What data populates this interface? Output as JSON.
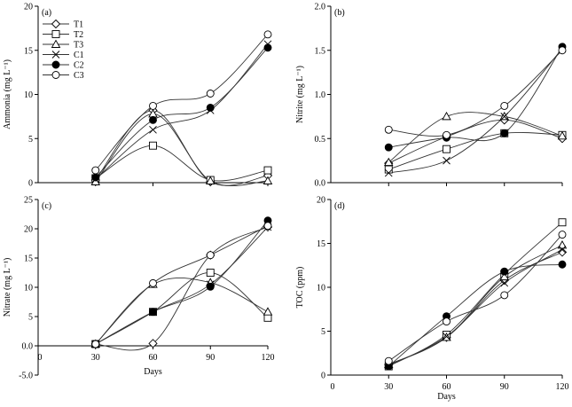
{
  "chart_data": [
    {
      "type": "line",
      "panel": "(a)",
      "ylabel": "Ammonia (mg L⁻¹)",
      "xlabel": "",
      "ylim": [
        0,
        20
      ],
      "yticks": [
        "0",
        "5",
        "10",
        "15",
        "20"
      ],
      "xlim": [
        0,
        120
      ],
      "xticks": [],
      "x": [
        30,
        60,
        90,
        120
      ],
      "legend": {
        "placement": "top-left",
        "entries": [
          "T1",
          "T2",
          "T3",
          "C1",
          "C2",
          "C3"
        ]
      },
      "series": [
        {
          "name": "T1",
          "marker": "diamond-open",
          "values": [
            0.3,
            8.2,
            0.1,
            0.8
          ]
        },
        {
          "name": "T2",
          "marker": "square-open",
          "values": [
            0.5,
            4.2,
            0.3,
            1.4
          ]
        },
        {
          "name": "T3",
          "marker": "triangle-open",
          "values": [
            0.1,
            7.8,
            0.2,
            0.2
          ]
        },
        {
          "name": "C1",
          "marker": "cross",
          "values": [
            0.4,
            6.0,
            8.2,
            15.7
          ]
        },
        {
          "name": "C2",
          "marker": "circle-filled",
          "values": [
            0.6,
            7.1,
            8.5,
            15.3
          ]
        },
        {
          "name": "C3",
          "marker": "circle-open",
          "values": [
            1.4,
            8.7,
            10.1,
            16.8
          ]
        }
      ]
    },
    {
      "type": "line",
      "panel": "(b)",
      "ylabel": "Nitrite (mg L⁻¹)",
      "xlabel": "",
      "ylim": [
        0,
        2
      ],
      "yticks": [
        "0.0",
        "0.5",
        "1.0",
        "1.5",
        "2.0"
      ],
      "xlim": [
        0,
        120
      ],
      "xticks": [],
      "x": [
        30,
        60,
        90,
        120
      ],
      "series": [
        {
          "name": "T1",
          "marker": "diamond-open",
          "values": [
            0.22,
            0.52,
            0.71,
            0.5
          ]
        },
        {
          "name": "T2",
          "marker": "square-open",
          "values": [
            0.15,
            0.38,
            0.56,
            0.54
          ]
        },
        {
          "name": "T3",
          "marker": "triangle-open",
          "values": [
            0.23,
            0.75,
            0.75,
            0.53
          ]
        },
        {
          "name": "C1",
          "marker": "cross",
          "values": [
            0.11,
            0.25,
            0.75,
            1.52
          ]
        },
        {
          "name": "C2",
          "marker": "circle-filled",
          "values": [
            0.4,
            0.51,
            0.56,
            1.54
          ]
        },
        {
          "name": "C3",
          "marker": "circle-open",
          "values": [
            0.6,
            0.54,
            0.87,
            1.5
          ]
        }
      ]
    },
    {
      "type": "line",
      "panel": "(c)",
      "ylabel": "Nitrate (mg L⁻¹)",
      "xlabel": "Days",
      "ylim": [
        -5,
        25
      ],
      "yticks": [
        "-5.0",
        "0.0",
        "5",
        "10",
        "15",
        "20",
        "25"
      ],
      "xlim": [
        0,
        120
      ],
      "xticks": [
        "0",
        "30",
        "60",
        "90",
        "120"
      ],
      "x": [
        30,
        60,
        90,
        120
      ],
      "series": [
        {
          "name": "T1",
          "marker": "diamond-open",
          "values": [
            0.3,
            0.4,
            15.5,
            20.3
          ]
        },
        {
          "name": "T2",
          "marker": "square-open",
          "values": [
            0.3,
            5.8,
            12.5,
            4.8
          ]
        },
        {
          "name": "T3",
          "marker": "triangle-open",
          "values": [
            0.3,
            10.5,
            10.8,
            5.8
          ]
        },
        {
          "name": "C1",
          "marker": "cross",
          "values": [
            0.3,
            5.8,
            10.5,
            20.3
          ]
        },
        {
          "name": "C2",
          "marker": "circle-filled",
          "values": [
            0.3,
            5.8,
            10.1,
            21.4
          ]
        },
        {
          "name": "C3",
          "marker": "circle-open",
          "values": [
            0.3,
            10.7,
            15.5,
            20.5
          ]
        }
      ]
    },
    {
      "type": "line",
      "panel": "(d)",
      "ylabel": "TOC (ppm)",
      "xlabel": "Days",
      "ylim": [
        0,
        20
      ],
      "yticks": [
        "0",
        "5",
        "10",
        "15",
        "20"
      ],
      "xlim": [
        0,
        120
      ],
      "xticks": [
        "0",
        "30",
        "60",
        "90",
        "120"
      ],
      "x": [
        30,
        60,
        90,
        120
      ],
      "series": [
        {
          "name": "T1",
          "marker": "diamond-open",
          "values": [
            1.2,
            4.3,
            10.8,
            14.0
          ]
        },
        {
          "name": "T2",
          "marker": "square-open",
          "values": [
            1.0,
            4.6,
            11.5,
            17.4
          ]
        },
        {
          "name": "T3",
          "marker": "triangle-open",
          "values": [
            1.2,
            4.3,
            11.2,
            14.8
          ]
        },
        {
          "name": "C1",
          "marker": "cross",
          "values": [
            1.1,
            4.4,
            10.5,
            14.3
          ]
        },
        {
          "name": "C2",
          "marker": "circle-filled",
          "values": [
            1.0,
            6.7,
            11.8,
            12.6
          ]
        },
        {
          "name": "C3",
          "marker": "circle-open",
          "values": [
            1.6,
            6.1,
            9.1,
            16.0
          ]
        }
      ]
    }
  ]
}
